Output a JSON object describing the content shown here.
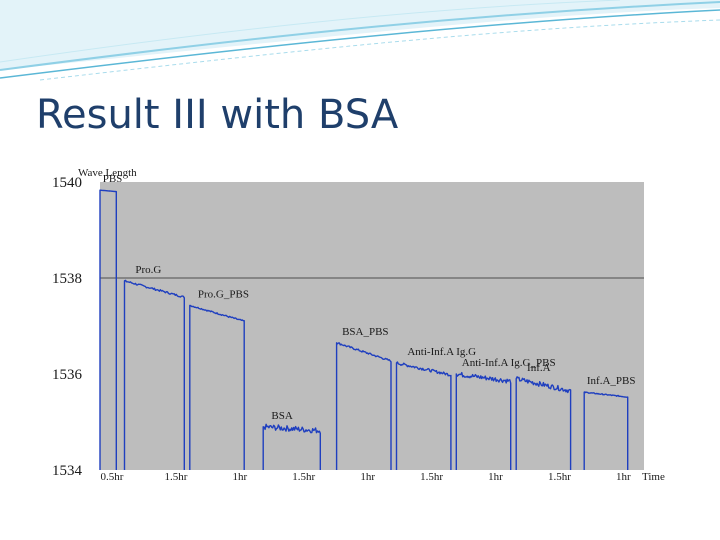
{
  "slide": {
    "title": "Result III with BSA"
  },
  "colors": {
    "trace": "#1f3fbf",
    "plot_bg": "#bdbdbd",
    "title": "#1f3f6b",
    "deco": "#5bb7d6"
  },
  "chart_data": {
    "type": "line",
    "ylabel": "Wave Length",
    "xlabel": "Time",
    "ylim": [
      1534,
      1540
    ],
    "y_ticks": [
      "1540",
      "1538",
      "1536",
      "1534"
    ],
    "x_ticks": [
      "0.5hr",
      "1.5hr",
      "1hr",
      "1.5hr",
      "1hr",
      "1.5hr",
      "1hr",
      "1.5hr",
      "1hr"
    ],
    "grid": "horizontal",
    "annotations": [
      "PBS",
      "Pro.G",
      "Pro.G_PBS",
      "BSA",
      "BSA_PBS",
      "Anti-Inf.A Ig.G",
      "Anti-Inf.A Ig.G_PBS",
      "Inf.A",
      "Inf.A_PBS"
    ],
    "segments": [
      {
        "label": "PBS",
        "x": [
          0.0,
          0.3
        ],
        "y": [
          1539.83,
          1539.8
        ],
        "noise": 0.0
      },
      {
        "label": "Pro.G",
        "x": [
          0.45,
          1.55
        ],
        "y": [
          1537.94,
          1537.6
        ],
        "noise": 0.02
      },
      {
        "label": "Pro.G_PBS",
        "x": [
          1.65,
          2.65
        ],
        "y": [
          1537.43,
          1537.1
        ],
        "noise": 0.015
      },
      {
        "label": "BSA",
        "x": [
          3.0,
          4.05
        ],
        "y": [
          1534.9,
          1534.82
        ],
        "noise": 0.06
      },
      {
        "label": "BSA_PBS",
        "x": [
          4.35,
          5.35
        ],
        "y": [
          1536.65,
          1536.27
        ],
        "noise": 0.02
      },
      {
        "label": "Anti-Inf.A Ig.G",
        "x": [
          5.45,
          6.45
        ],
        "y": [
          1536.23,
          1535.98
        ],
        "noise": 0.03
      },
      {
        "label": "Anti-Inf.A Ig.G_PBS",
        "x": [
          6.55,
          7.55
        ],
        "y": [
          1536.0,
          1535.85
        ],
        "noise": 0.05
      },
      {
        "label": "Inf.A",
        "x": [
          7.65,
          8.65
        ],
        "y": [
          1535.9,
          1535.65
        ],
        "noise": 0.05
      },
      {
        "label": "Inf.A_PBS",
        "x": [
          8.9,
          9.7
        ],
        "y": [
          1535.62,
          1535.52
        ],
        "noise": 0.01
      }
    ]
  }
}
